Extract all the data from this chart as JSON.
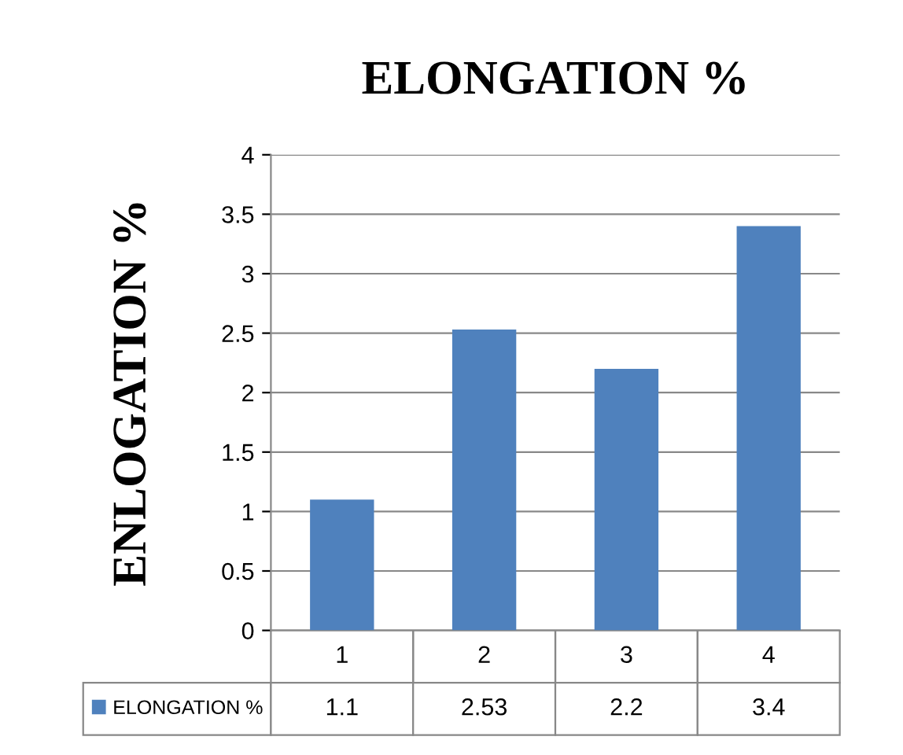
{
  "chart_data": {
    "type": "bar",
    "title": "ELONGATION %",
    "ylabel": "ENLOGATION %",
    "categories": [
      "1",
      "2",
      "3",
      "4"
    ],
    "series": [
      {
        "name": "ELONGATION %",
        "color": "#4f81bd",
        "values": [
          1.1,
          2.53,
          2.2,
          3.4
        ]
      }
    ],
    "ylim": [
      0,
      4
    ],
    "yticks": [
      0,
      0.5,
      1,
      1.5,
      2,
      2.5,
      3,
      3.5,
      4
    ],
    "grid": "y",
    "data_labels": true,
    "legend": "bottom left"
  }
}
